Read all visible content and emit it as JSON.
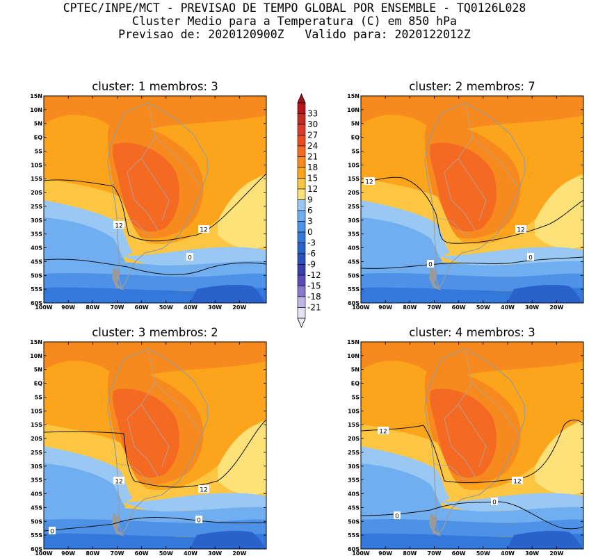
{
  "header": {
    "line1": "CPTEC/INPE/MCT - PREVISAO DE TEMPO GLOBAL POR ENSEMBLE - TQ0126L028",
    "line2": "Cluster Medio para a Temperatura (C) em 850 hPa",
    "line3": "Previsao de: 2020120900Z   Valido para: 2020122012Z"
  },
  "lat_ticks": [
    "15N",
    "10N",
    "5N",
    "EQ",
    "5S",
    "10S",
    "15S",
    "20S",
    "25S",
    "30S",
    "35S",
    "40S",
    "45S",
    "50S",
    "55S",
    "60S"
  ],
  "lon_ticks": [
    "100W",
    "90W",
    "80W",
    "70W",
    "60W",
    "50W",
    "40W",
    "30W",
    "20W"
  ],
  "colorbar": {
    "labels": [
      "33",
      "30",
      "27",
      "24",
      "21",
      "18",
      "15",
      "12",
      "9",
      "6",
      "3",
      "0",
      "-3",
      "-6",
      "-9",
      "-12",
      "-15",
      "-18",
      "-21"
    ],
    "colors": [
      "#b4161c",
      "#c42a24",
      "#d83c2c",
      "#ee4a20",
      "#f46a22",
      "#f78a1e",
      "#fba41c",
      "#fcc542",
      "#fde27a",
      "#9ac8f4",
      "#70aef0",
      "#4e92e8",
      "#3478dc",
      "#2a62cc",
      "#2a50bc",
      "#3a3eac",
      "#5a4cb8",
      "#8a78cc",
      "#c2b6e4",
      "#e6e2f4"
    ],
    "top_color": "#a0141a",
    "bottom_color": "#ece8f6"
  },
  "panels": [
    {
      "title": "cluster: 1  membros: 3",
      "labels": [
        "12",
        "12",
        "0"
      ]
    },
    {
      "title": "cluster: 2  membros: 7",
      "labels": [
        "12",
        "12",
        "0",
        "0"
      ]
    },
    {
      "title": "cluster: 3  membros: 2",
      "labels": [
        "12",
        "12",
        "0",
        "0"
      ]
    },
    {
      "title": "cluster: 4  membros: 3",
      "labels": [
        "12",
        "12",
        "0",
        "0"
      ]
    }
  ]
}
